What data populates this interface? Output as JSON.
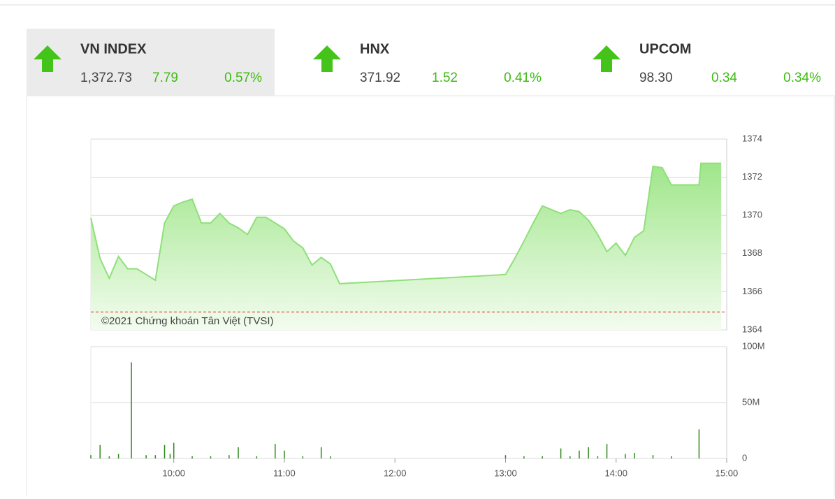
{
  "indices": [
    {
      "name": "VN INDEX",
      "value": "1,372.73",
      "change": "7.79",
      "percent": "0.57%"
    },
    {
      "name": "HNX",
      "value": "371.92",
      "change": "1.52",
      "percent": "0.41%"
    },
    {
      "name": "UPCOM",
      "value": "98.30",
      "change": "0.34",
      "percent": "0.34%"
    }
  ],
  "chart_data": [
    {
      "type": "area",
      "annotation": "©2021 Chứng khoán Tân Việt (TVSI)",
      "color": "#8fe07a",
      "reference": 1364.94,
      "reference_color": "#d9261c",
      "x": [
        "9:15",
        "9:20",
        "9:25",
        "9:30",
        "9:35",
        "9:40",
        "9:45",
        "9:50",
        "9:55",
        "10:00",
        "10:05",
        "10:10",
        "10:15",
        "10:20",
        "10:25",
        "10:30",
        "10:35",
        "10:40",
        "10:45",
        "10:50",
        "10:55",
        "11:00",
        "11:05",
        "11:10",
        "11:15",
        "11:20",
        "11:25",
        "11:30",
        "13:00",
        "13:05",
        "13:10",
        "13:15",
        "13:20",
        "13:25",
        "13:30",
        "13:35",
        "13:40",
        "13:45",
        "13:50",
        "13:55",
        "14:00",
        "14:05",
        "14:10",
        "14:15",
        "14:20",
        "14:25",
        "14:30",
        "14:45",
        "14:46",
        "14:57"
      ],
      "values": [
        1369.86,
        1367.74,
        1366.7,
        1367.85,
        1367.2,
        1367.2,
        1366.9,
        1366.6,
        1369.6,
        1370.5,
        1370.7,
        1370.85,
        1369.6,
        1369.6,
        1370.1,
        1369.6,
        1369.35,
        1369.0,
        1369.9,
        1369.9,
        1369.6,
        1369.3,
        1368.65,
        1368.3,
        1367.4,
        1367.8,
        1367.45,
        1366.42,
        1366.9,
        1367.74,
        1368.65,
        1369.6,
        1370.5,
        1370.3,
        1370.1,
        1370.3,
        1370.2,
        1369.75,
        1369.0,
        1368.1,
        1368.55,
        1367.9,
        1368.85,
        1369.2,
        1372.57,
        1372.5,
        1371.6,
        1371.6,
        1372.73,
        1372.73
      ],
      "xlim": [
        "9:15",
        "15:00"
      ],
      "ylim": [
        1364,
        1374
      ],
      "yticks": [
        1364,
        1366,
        1368,
        1370,
        1372,
        1374
      ],
      "grid": true
    },
    {
      "type": "bar",
      "color": "#2f8a1c",
      "x": [
        "9:15",
        "9:20",
        "9:25",
        "9:30",
        "9:37",
        "9:45",
        "9:50",
        "9:55",
        "9:58",
        "10:00",
        "10:10",
        "10:20",
        "10:30",
        "10:35",
        "10:45",
        "10:55",
        "11:00",
        "11:10",
        "11:20",
        "11:25",
        "13:00",
        "13:10",
        "13:20",
        "13:30",
        "13:35",
        "13:40",
        "13:45",
        "13:50",
        "13:55",
        "14:05",
        "14:10",
        "14:20",
        "14:30",
        "14:45"
      ],
      "values": [
        3000000,
        12000000,
        2000000,
        4000000,
        86000000,
        3000000,
        3000000,
        12000000,
        4000000,
        14000000,
        2000000,
        2000000,
        3000000,
        10000000,
        2000000,
        13000000,
        7000000,
        2000000,
        10000000,
        2000000,
        3000000,
        2000000,
        2000000,
        9000000,
        2000000,
        7000000,
        10000000,
        2000000,
        13000000,
        4000000,
        5000000,
        3000000,
        2000000,
        26000000
      ],
      "xlim": [
        "9:15",
        "15:00"
      ],
      "ylim": [
        0,
        100000000
      ],
      "yticks": [
        0,
        {
          "value": 50000000,
          "label": "50M"
        },
        {
          "value": 100000000,
          "label": "100M"
        }
      ],
      "xticks": [
        "10:00",
        "11:00",
        "12:00",
        "13:00",
        "14:00",
        "15:00"
      ],
      "grid": true
    }
  ]
}
